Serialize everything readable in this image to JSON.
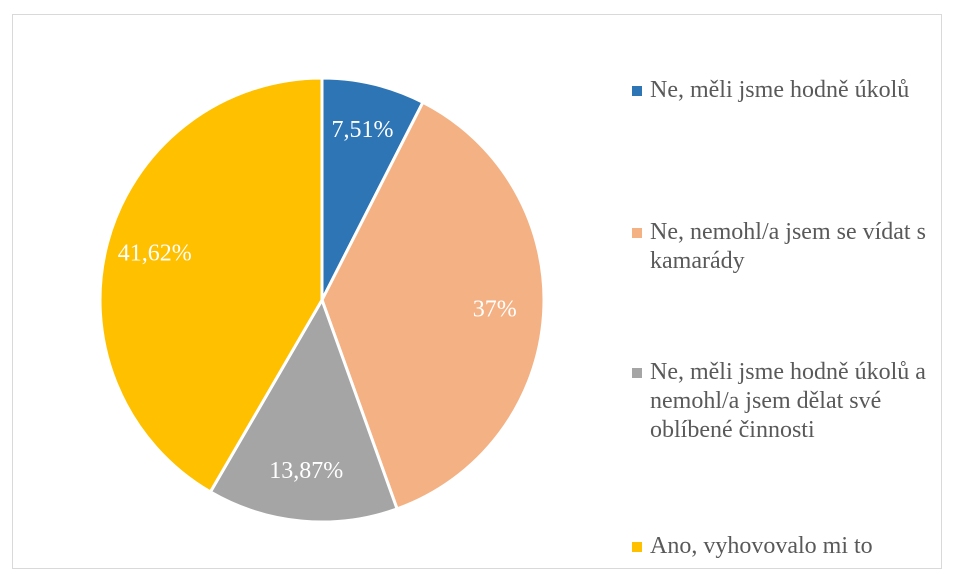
{
  "chart_data": {
    "type": "pie",
    "categories": [
      "Ne, měli jsme hodně úkolů",
      "Ne, nemohl/a jsem se vídat s kamarády",
      "Ne, měli jsme hodně úkolů a nemohl/a jsem dělat své oblíbené činnosti",
      "Ano, vyhovovalo mi to"
    ],
    "values": [
      7.51,
      37,
      13.87,
      41.62
    ],
    "value_labels": [
      "7,51%",
      "37%",
      "13,87%",
      "41,62%"
    ],
    "colors": [
      "#2e75b6",
      "#f4b183",
      "#a5a5a5",
      "#ffc000"
    ],
    "legend": "right"
  }
}
